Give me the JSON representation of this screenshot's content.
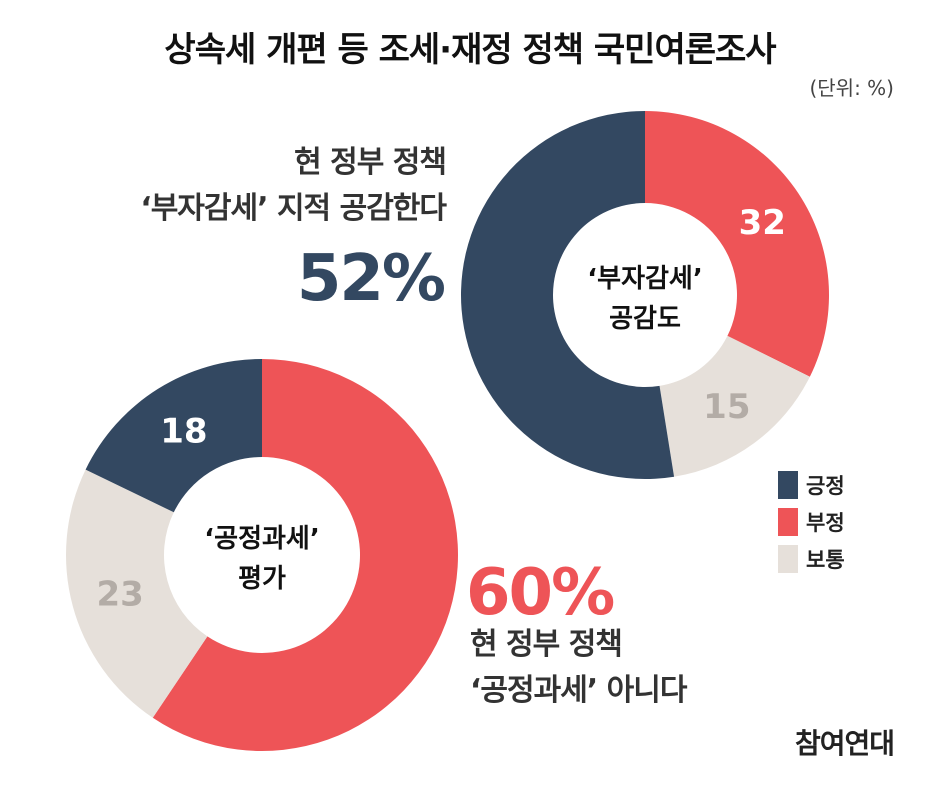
{
  "title": "상속세 개편 등 조세·재정 정책 국민여론조사",
  "unit_note": "(단위: %)",
  "callout_top": {
    "line1": "현 정부 정책",
    "line2": "‘부자감세’ 지적 공감한다",
    "highlight": "52%"
  },
  "callout_bottom": {
    "highlight": "60%",
    "line1": "현 정부 정책",
    "line2": "‘공정과세’ 아니다"
  },
  "legend": [
    {
      "label": "긍정",
      "color": "#334861"
    },
    {
      "label": "부정",
      "color": "#ee5457"
    },
    {
      "label": "보통",
      "color": "#e6e0da"
    }
  ],
  "source_logo": "참여연대",
  "chart_data": [
    {
      "type": "pie",
      "center_label": [
        "‘부자감세’",
        "공감도"
      ],
      "categories": [
        "긍정",
        "부정",
        "보통"
      ],
      "values": [
        52,
        32,
        15
      ],
      "labels": [
        "",
        "32",
        "15"
      ],
      "colors": [
        "#334861",
        "#ee5457",
        "#e6e0da"
      ]
    },
    {
      "type": "pie",
      "center_label": [
        "‘공정과세’",
        "평가"
      ],
      "categories": [
        "긍정",
        "부정",
        "보통"
      ],
      "values": [
        18,
        60,
        23
      ],
      "labels": [
        "18",
        "",
        "23"
      ],
      "colors": [
        "#334861",
        "#ee5457",
        "#e6e0da"
      ]
    }
  ]
}
